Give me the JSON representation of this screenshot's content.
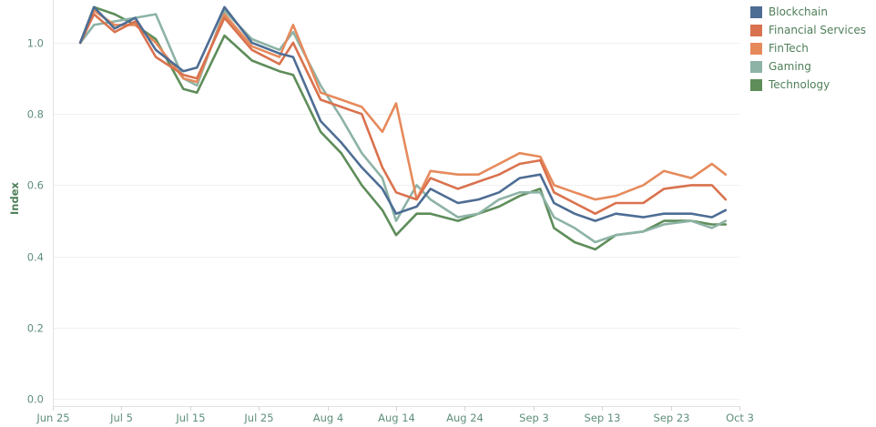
{
  "chart_data": {
    "type": "line",
    "title": "",
    "xlabel": "",
    "ylabel": "Index",
    "ylim": [
      -0.02,
      1.12
    ],
    "xlim": [
      "2018-06-25",
      "2018-10-03"
    ],
    "y_ticks": [
      0.0,
      0.2,
      0.4,
      0.6,
      0.8,
      1.0
    ],
    "y_tick_labels": [
      "0.0",
      "0.2",
      "0.4",
      "0.6",
      "0.8",
      "1.0"
    ],
    "x_ticks": [
      "2018-06-25",
      "2018-07-05",
      "2018-07-15",
      "2018-07-25",
      "2018-08-04",
      "2018-08-14",
      "2018-08-24",
      "2018-09-03",
      "2018-09-13",
      "2018-09-23",
      "2018-10-03"
    ],
    "x_tick_labels": [
      "Jun 25",
      "Jul 5",
      "Jul 15",
      "Jul 25",
      "Aug 4",
      "Aug 14",
      "Aug 24",
      "Sep 3",
      "Sep 13",
      "Sep 23",
      "Oct 3"
    ],
    "grid": "horizontal",
    "legend_position": "top-right",
    "x": [
      "2018-06-29",
      "2018-07-01",
      "2018-07-04",
      "2018-07-07",
      "2018-07-10",
      "2018-07-14",
      "2018-07-16",
      "2018-07-20",
      "2018-07-24",
      "2018-07-28",
      "2018-07-30",
      "2018-08-03",
      "2018-08-06",
      "2018-08-09",
      "2018-08-12",
      "2018-08-14",
      "2018-08-17",
      "2018-08-19",
      "2018-08-23",
      "2018-08-26",
      "2018-08-29",
      "2018-09-01",
      "2018-09-04",
      "2018-09-06",
      "2018-09-09",
      "2018-09-12",
      "2018-09-15",
      "2018-09-19",
      "2018-09-22",
      "2018-09-26",
      "2018-09-29",
      "2018-10-01"
    ],
    "series": [
      {
        "name": "Blockchain",
        "color": "#4e6d94",
        "values": [
          1.0,
          1.1,
          1.04,
          1.07,
          0.98,
          0.92,
          0.93,
          1.1,
          1.0,
          0.97,
          0.96,
          0.78,
          0.72,
          0.65,
          0.59,
          0.52,
          0.54,
          0.59,
          0.55,
          0.56,
          0.58,
          0.62,
          0.63,
          0.55,
          0.52,
          0.5,
          0.52,
          0.51,
          0.52,
          0.52,
          0.51,
          0.53
        ]
      },
      {
        "name": "Financial Services",
        "color": "#d9724e",
        "values": [
          1.0,
          1.08,
          1.03,
          1.06,
          0.96,
          0.91,
          0.9,
          1.07,
          0.98,
          0.94,
          1.0,
          0.84,
          0.82,
          0.8,
          0.65,
          0.58,
          0.56,
          0.62,
          0.59,
          0.61,
          0.63,
          0.66,
          0.67,
          0.58,
          0.55,
          0.52,
          0.55,
          0.55,
          0.59,
          0.6,
          0.6,
          0.56
        ]
      },
      {
        "name": "FinTech",
        "color": "#e68a5c",
        "values": [
          1.0,
          1.09,
          1.05,
          1.05,
          1.0,
          0.9,
          0.89,
          1.08,
          0.99,
          0.96,
          1.05,
          0.86,
          0.84,
          0.82,
          0.75,
          0.83,
          0.56,
          0.64,
          0.63,
          0.63,
          0.66,
          0.69,
          0.68,
          0.6,
          0.58,
          0.56,
          0.57,
          0.6,
          0.64,
          0.62,
          0.66,
          0.63
        ]
      },
      {
        "name": "Gaming",
        "color": "#8db3a6",
        "values": [
          1.0,
          1.05,
          1.06,
          1.07,
          1.08,
          0.9,
          0.88,
          1.09,
          1.01,
          0.98,
          1.03,
          0.88,
          0.79,
          0.69,
          0.62,
          0.5,
          0.6,
          0.56,
          0.51,
          0.52,
          0.56,
          0.58,
          0.58,
          0.51,
          0.48,
          0.44,
          0.46,
          0.47,
          0.49,
          0.5,
          0.48,
          0.5
        ]
      },
      {
        "name": "Technology",
        "color": "#5e8d5a",
        "values": [
          1.0,
          1.1,
          1.08,
          1.05,
          1.01,
          0.87,
          0.86,
          1.02,
          0.95,
          0.92,
          0.91,
          0.75,
          0.69,
          0.6,
          0.53,
          0.46,
          0.52,
          0.52,
          0.5,
          0.52,
          0.54,
          0.57,
          0.59,
          0.48,
          0.44,
          0.42,
          0.46,
          0.47,
          0.5,
          0.5,
          0.49,
          0.49
        ]
      }
    ]
  }
}
